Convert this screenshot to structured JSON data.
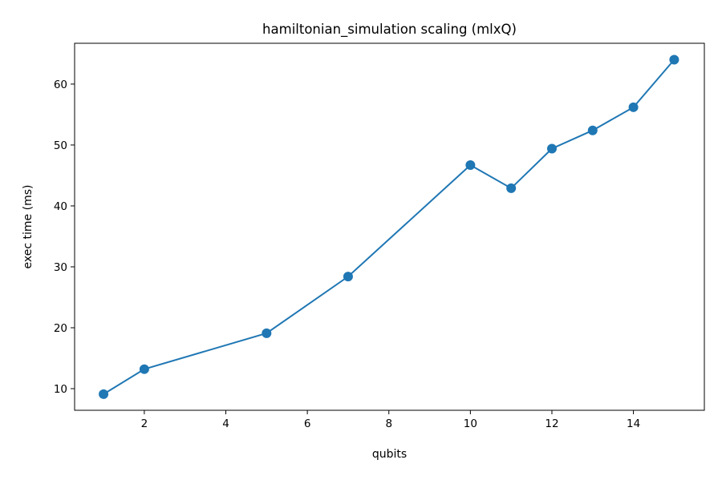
{
  "chart_data": {
    "type": "line",
    "title": "hamiltonian_simulation scaling (mlxQ)",
    "xlabel": "qubits",
    "ylabel": "exec time (ms)",
    "x": [
      1,
      2,
      5,
      7,
      10,
      11,
      12,
      13,
      14,
      15
    ],
    "series": [
      {
        "name": "mlxQ",
        "values": [
          9.1,
          13.2,
          19.1,
          28.4,
          46.7,
          42.9,
          49.4,
          52.4,
          56.2,
          64.0
        ],
        "color": "#1f77b4",
        "marker": "circle"
      }
    ],
    "xlim": [
      0.29,
      15.74
    ],
    "ylim": [
      6.45,
      66.7
    ],
    "xticks": [
      2,
      4,
      6,
      8,
      10,
      12,
      14
    ],
    "yticks": [
      10,
      20,
      30,
      40,
      50,
      60
    ],
    "grid": false,
    "legend": "none"
  }
}
